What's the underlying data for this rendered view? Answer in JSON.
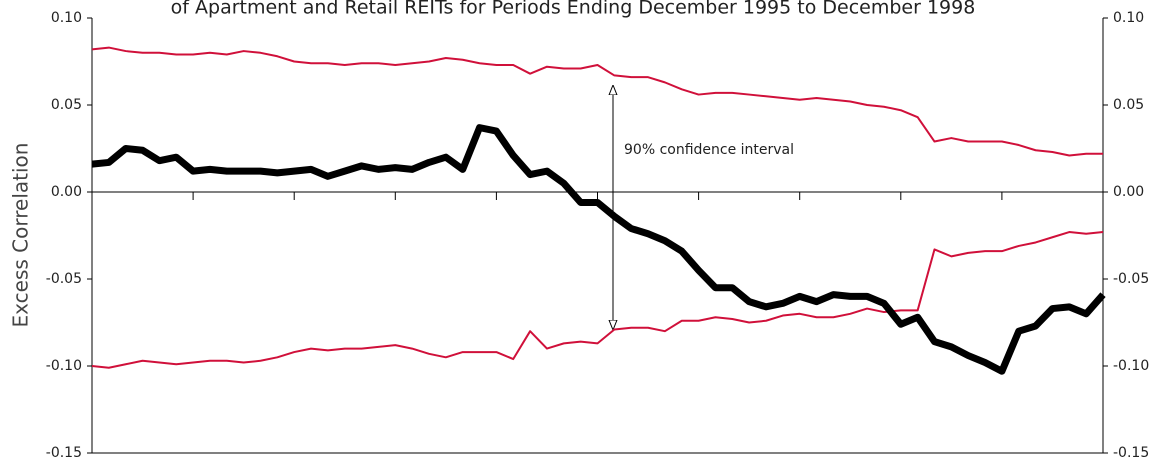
{
  "chart_data": {
    "type": "line",
    "title": "of Apartment and Retail REITs for Periods Ending December 1995 to December 1998",
    "ylabel": "Excess Correlation",
    "annotation": "90% confidence interval",
    "categories": [
      null,
      null,
      null,
      null,
      null,
      null,
      null,
      null,
      null,
      null,
      null,
      null,
      null,
      null,
      null,
      null,
      null,
      null,
      null,
      null,
      null,
      null,
      null,
      null,
      null,
      null,
      null,
      null,
      null,
      null,
      null,
      null,
      null,
      null,
      null,
      null,
      null,
      null,
      null,
      null,
      null,
      null,
      null,
      null,
      null,
      null,
      null,
      null,
      null,
      null,
      null,
      null,
      null,
      null,
      null,
      null,
      null,
      null,
      null,
      null,
      null
    ],
    "ylim": [
      -0.15,
      0.1
    ],
    "yticks": [
      {
        "value": -0.15,
        "label": "-0.15"
      },
      {
        "value": -0.1,
        "label": "-0.10"
      },
      {
        "value": -0.05,
        "label": "-0.05"
      },
      {
        "value": 0,
        "label": "0.00"
      },
      {
        "value": 0.05,
        "label": "0.05"
      },
      {
        "value": 0.1,
        "label": "0.10"
      }
    ],
    "series": [
      {
        "color": "#d0103a",
        "width": 2,
        "values": [
          0.082,
          0.083,
          0.081,
          0.08,
          0.08,
          0.079,
          0.079,
          0.08,
          0.079,
          0.081,
          0.08,
          0.078,
          0.075,
          0.074,
          0.074,
          0.073,
          0.074,
          0.074,
          0.073,
          0.074,
          0.075,
          0.077,
          0.076,
          0.074,
          0.073,
          0.073,
          0.068,
          0.072,
          0.071,
          0.071,
          0.073,
          0.067,
          0.066,
          0.066,
          0.063,
          0.059,
          0.056,
          0.057,
          0.057,
          0.056,
          0.055,
          0.054,
          0.053,
          0.054,
          0.053,
          0.052,
          0.05,
          0.049,
          0.047,
          0.043,
          0.029,
          0.031,
          0.029,
          0.029,
          0.029,
          0.027,
          0.024,
          0.023,
          0.021,
          0.022,
          0.022
        ]
      },
      {
        "color": "#d0103a",
        "width": 2,
        "values": [
          -0.1,
          -0.101,
          -0.099,
          -0.097,
          -0.098,
          -0.099,
          -0.098,
          -0.097,
          -0.097,
          -0.098,
          -0.097,
          -0.095,
          -0.092,
          -0.09,
          -0.091,
          -0.09,
          -0.09,
          -0.089,
          -0.088,
          -0.09,
          -0.093,
          -0.095,
          -0.092,
          -0.092,
          -0.092,
          -0.096,
          -0.08,
          -0.09,
          -0.087,
          -0.086,
          -0.087,
          -0.079,
          -0.078,
          -0.078,
          -0.08,
          -0.074,
          -0.074,
          -0.072,
          -0.073,
          -0.075,
          -0.074,
          -0.071,
          -0.07,
          -0.072,
          -0.072,
          -0.07,
          -0.067,
          -0.069,
          -0.068,
          -0.068,
          -0.033,
          -0.037,
          -0.035,
          -0.034,
          -0.034,
          -0.031,
          -0.029,
          -0.026,
          -0.023,
          -0.024,
          -0.023
        ]
      },
      {
        "color": "#000000",
        "width": 7,
        "values": [
          0.016,
          0.017,
          0.025,
          0.024,
          0.018,
          0.02,
          0.012,
          0.013,
          0.012,
          0.012,
          0.012,
          0.011,
          0.012,
          0.013,
          0.009,
          0.012,
          0.015,
          0.013,
          0.014,
          0.013,
          0.017,
          0.02,
          0.013,
          0.037,
          0.035,
          0.021,
          0.01,
          0.012,
          0.005,
          -0.006,
          -0.006,
          -0.014,
          -0.021,
          -0.024,
          -0.028,
          -0.034,
          -0.045,
          -0.055,
          -0.055,
          -0.063,
          -0.066,
          -0.064,
          -0.06,
          -0.063,
          -0.059,
          -0.06,
          -0.06,
          -0.064,
          -0.076,
          -0.072,
          -0.086,
          -0.089,
          -0.094,
          -0.098,
          -0.103,
          -0.08,
          -0.077,
          -0.067,
          -0.066,
          -0.07,
          -0.059
        ]
      }
    ]
  }
}
